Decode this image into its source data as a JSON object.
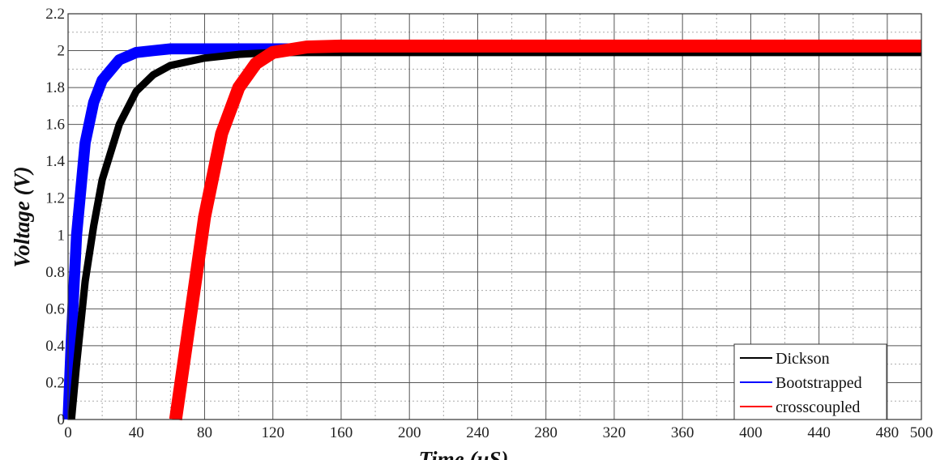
{
  "chart_data": {
    "type": "line",
    "title": "",
    "xlabel": "Time (μS)",
    "ylabel": "Voltage (V)",
    "xlim": [
      0,
      500
    ],
    "ylim": [
      0,
      2.2
    ],
    "xticks": [
      "0",
      "40",
      "80",
      "120",
      "160",
      "200",
      "240",
      "280",
      "320",
      "360",
      "400",
      "440",
      "480",
      "500"
    ],
    "xtick_values": [
      0,
      40,
      80,
      120,
      160,
      200,
      240,
      280,
      320,
      360,
      400,
      440,
      480,
      500
    ],
    "yticks": [
      "0",
      "0.2",
      "0.4",
      "0.6",
      "0.8",
      "1",
      "1.2",
      "1.4",
      "1.6",
      "1.8",
      "2",
      "2.2"
    ],
    "ytick_values": [
      0,
      0.2,
      0.4,
      0.6,
      0.8,
      1,
      1.2,
      1.4,
      1.6,
      1.8,
      2,
      2.2
    ],
    "grid": true,
    "minor_grid": true,
    "legend_position": "bottom-right",
    "series": [
      {
        "name": "Dickson",
        "color": "#000000",
        "ripple": 0.02,
        "x": [
          2,
          5,
          10,
          15,
          20,
          30,
          40,
          50,
          60,
          80,
          100,
          120,
          500
        ],
        "y": [
          0,
          0.3,
          0.75,
          1.05,
          1.3,
          1.6,
          1.78,
          1.87,
          1.92,
          1.96,
          1.98,
          1.99,
          1.99
        ]
      },
      {
        "name": "Bootstrapped",
        "color": "#0000ff",
        "ripple": 0.03,
        "x": [
          0,
          2,
          5,
          10,
          15,
          20,
          30,
          40,
          50,
          60,
          100,
          500
        ],
        "y": [
          0,
          0.45,
          1.0,
          1.5,
          1.72,
          1.84,
          1.95,
          1.99,
          2.0,
          2.01,
          2.01,
          2.01
        ]
      },
      {
        "name": "crosscoupled",
        "color": "#ff0000",
        "ripple": 0.035,
        "x": [
          63,
          70,
          80,
          90,
          100,
          110,
          120,
          140,
          160,
          500
        ],
        "y": [
          0,
          0.45,
          1.1,
          1.55,
          1.8,
          1.93,
          1.99,
          2.02,
          2.025,
          2.025
        ]
      }
    ]
  }
}
